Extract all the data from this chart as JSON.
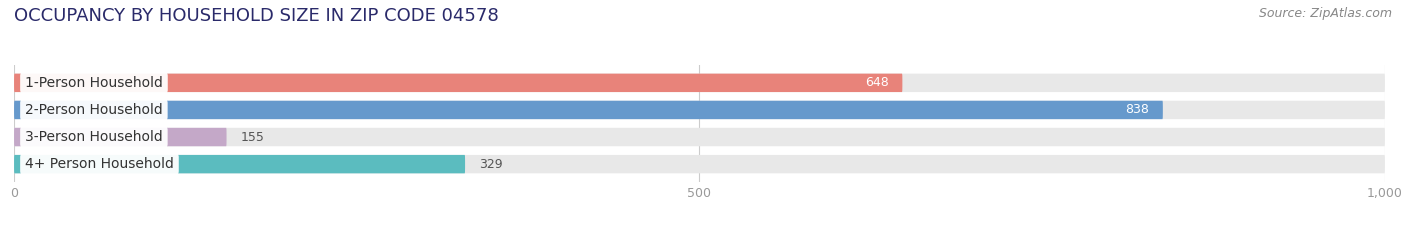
{
  "title": "OCCUPANCY BY HOUSEHOLD SIZE IN ZIP CODE 04578",
  "source": "Source: ZipAtlas.com",
  "categories": [
    "1-Person Household",
    "2-Person Household",
    "3-Person Household",
    "4+ Person Household"
  ],
  "values": [
    648,
    838,
    155,
    329
  ],
  "bar_colors": [
    "#E8837A",
    "#6699CC",
    "#C4A8C8",
    "#5BBCBF"
  ],
  "value_inside": [
    true,
    true,
    false,
    false
  ],
  "xlim": [
    0,
    1000
  ],
  "xticks": [
    0,
    500,
    1000
  ],
  "xtick_labels": [
    "0",
    "500",
    "1,000"
  ],
  "background_color": "#ffffff",
  "bar_bg_color": "#e8e8e8",
  "title_fontsize": 13,
  "label_fontsize": 10,
  "value_fontsize": 9,
  "source_fontsize": 9,
  "title_color": "#2a2a6a",
  "label_color": "#333333",
  "value_color_inside": "#ffffff",
  "value_color_outside": "#555555",
  "tick_color": "#999999",
  "grid_color": "#cccccc",
  "source_color": "#888888"
}
